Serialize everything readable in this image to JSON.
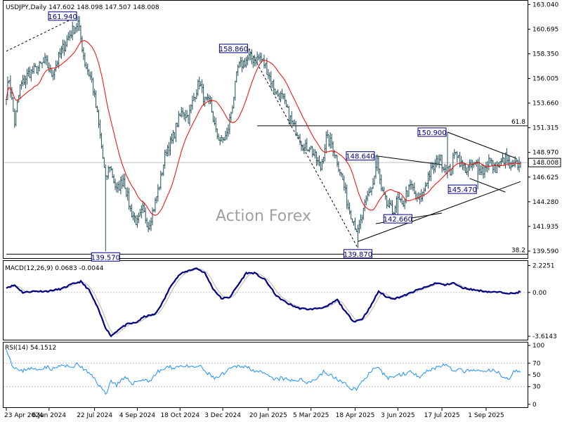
{
  "colors": {
    "price_bar": "#1f4e57",
    "sma": "#ff0000",
    "macd": "#000080",
    "macd_signal": "#b4b4b4",
    "rsi": "#1e90ff",
    "grid": "#c0c0c0",
    "level_box_border": "#000080",
    "level_text": "#000080",
    "watermark": "#a0a0a0",
    "current_price_bg": "#ffffff"
  },
  "header": {
    "title": "USDJPY,Daily  147.602 148.098 147.507 148.008"
  },
  "watermark": "Action Forex",
  "chart_data": [
    {
      "type": "ohlc",
      "title": "USDJPY,Daily  147.602 148.098 147.507 148.008",
      "symbol": "USDJPY",
      "timeframe": "Daily",
      "last_bar": {
        "open": 147.602,
        "high": 148.098,
        "low": 147.507,
        "close": 148.008
      },
      "current_price_label": "148.008",
      "ylim": [
        138.92,
        163.4
      ],
      "y_ticks": [
        "163.040",
        "160.695",
        "158.350",
        "156.005",
        "153.660",
        "151.315",
        "148.970",
        "146.625",
        "144.280",
        "141.935",
        "139.590"
      ],
      "x_ticks": [
        "23 Apr 2024",
        "6 Jun 2024",
        "22 Jul 2024",
        "4 Sep 2024",
        "18 Oct 2024",
        "3 Dec 2024",
        "20 Jan 2025",
        "5 Mar 2025",
        "18 Apr 2025",
        "3 Jun 2025",
        "17 Jul 2025",
        "1 Sep 2025"
      ],
      "x_tick_index": [
        0,
        31,
        64,
        95,
        126,
        157,
        190,
        221,
        253,
        284,
        316,
        348
      ],
      "close_anchors": [
        {
          "i": 0,
          "v": 154.5
        },
        {
          "i": 2,
          "v": 156.0
        },
        {
          "i": 6,
          "v": 151.8
        },
        {
          "i": 10,
          "v": 155.2
        },
        {
          "i": 16,
          "v": 156.5
        },
        {
          "i": 22,
          "v": 156.9
        },
        {
          "i": 28,
          "v": 157.6
        },
        {
          "i": 33,
          "v": 156.4
        },
        {
          "i": 40,
          "v": 158.6
        },
        {
          "i": 46,
          "v": 160.2
        },
        {
          "i": 52,
          "v": 161.3
        },
        {
          "i": 57,
          "v": 157.5
        },
        {
          "i": 62,
          "v": 155.8
        },
        {
          "i": 66,
          "v": 152.5
        },
        {
          "i": 69,
          "v": 149.5
        },
        {
          "i": 72,
          "v": 146.3
        },
        {
          "i": 75,
          "v": 147.8
        },
        {
          "i": 80,
          "v": 145.3
        },
        {
          "i": 85,
          "v": 146.5
        },
        {
          "i": 90,
          "v": 143.5
        },
        {
          "i": 95,
          "v": 142.2
        },
        {
          "i": 99,
          "v": 143.5
        },
        {
          "i": 103,
          "v": 142.0
        },
        {
          "i": 108,
          "v": 144.2
        },
        {
          "i": 112,
          "v": 146.5
        },
        {
          "i": 116,
          "v": 149.3
        },
        {
          "i": 120,
          "v": 150.0
        },
        {
          "i": 124,
          "v": 151.8
        },
        {
          "i": 128,
          "v": 153.0
        },
        {
          "i": 132,
          "v": 152.2
        },
        {
          "i": 136,
          "v": 154.2
        },
        {
          "i": 140,
          "v": 155.7
        },
        {
          "i": 144,
          "v": 153.8
        },
        {
          "i": 148,
          "v": 153.6
        },
        {
          "i": 152,
          "v": 150.8
        },
        {
          "i": 156,
          "v": 150.0
        },
        {
          "i": 160,
          "v": 150.6
        },
        {
          "i": 164,
          "v": 153.5
        },
        {
          "i": 168,
          "v": 157.0
        },
        {
          "i": 172,
          "v": 157.5
        },
        {
          "i": 176,
          "v": 158.0
        },
        {
          "i": 180,
          "v": 157.8
        },
        {
          "i": 184,
          "v": 158.0
        },
        {
          "i": 188,
          "v": 157.2
        },
        {
          "i": 192,
          "v": 155.8
        },
        {
          "i": 196,
          "v": 154.6
        },
        {
          "i": 200,
          "v": 154.2
        },
        {
          "i": 204,
          "v": 152.8
        },
        {
          "i": 208,
          "v": 151.5
        },
        {
          "i": 212,
          "v": 150.8
        },
        {
          "i": 216,
          "v": 149.3
        },
        {
          "i": 220,
          "v": 149.6
        },
        {
          "i": 224,
          "v": 148.5
        },
        {
          "i": 228,
          "v": 147.5
        },
        {
          "i": 232,
          "v": 150.3
        },
        {
          "i": 236,
          "v": 149.8
        },
        {
          "i": 240,
          "v": 148.2
        },
        {
          "i": 244,
          "v": 146.3
        },
        {
          "i": 248,
          "v": 143.8
        },
        {
          "i": 252,
          "v": 142.5
        },
        {
          "i": 255,
          "v": 141.3
        },
        {
          "i": 258,
          "v": 142.8
        },
        {
          "i": 262,
          "v": 144.8
        },
        {
          "i": 266,
          "v": 146.0
        },
        {
          "i": 269,
          "v": 148.2
        },
        {
          "i": 272,
          "v": 145.3
        },
        {
          "i": 276,
          "v": 144.0
        },
        {
          "i": 280,
          "v": 143.3
        },
        {
          "i": 284,
          "v": 144.5
        },
        {
          "i": 287,
          "v": 143.8
        },
        {
          "i": 290,
          "v": 145.0
        },
        {
          "i": 294,
          "v": 145.8
        },
        {
          "i": 298,
          "v": 144.3
        },
        {
          "i": 302,
          "v": 145.0
        },
        {
          "i": 306,
          "v": 146.8
        },
        {
          "i": 310,
          "v": 147.5
        },
        {
          "i": 314,
          "v": 148.5
        },
        {
          "i": 318,
          "v": 147.5
        },
        {
          "i": 322,
          "v": 147.2
        },
        {
          "i": 326,
          "v": 149.3
        },
        {
          "i": 330,
          "v": 147.8
        },
        {
          "i": 334,
          "v": 147.3
        },
        {
          "i": 338,
          "v": 147.7
        },
        {
          "i": 342,
          "v": 147.9
        },
        {
          "i": 346,
          "v": 147.2
        },
        {
          "i": 350,
          "v": 148.3
        },
        {
          "i": 354,
          "v": 147.4
        },
        {
          "i": 358,
          "v": 147.8
        },
        {
          "i": 362,
          "v": 148.5
        },
        {
          "i": 366,
          "v": 147.3
        },
        {
          "i": 370,
          "v": 147.8
        },
        {
          "i": 373,
          "v": 148.008
        }
      ],
      "series": [
        {
          "name": "SMA",
          "kind": "moving-average"
        }
      ],
      "annotations": [
        {
          "label": "161.940",
          "i": 52,
          "price": 161.94,
          "side": "left"
        },
        {
          "label": "139.570",
          "i": 72,
          "price": 139.57,
          "side": "below"
        },
        {
          "label": "158.860",
          "i": 176,
          "price": 158.86,
          "side": "left"
        },
        {
          "label": "139.870",
          "i": 255,
          "price": 139.87,
          "side": "below"
        },
        {
          "label": "148.640",
          "i": 268,
          "price": 148.64,
          "side": "left"
        },
        {
          "label": "142.660",
          "i": 284,
          "price": 142.66,
          "side": "inside"
        },
        {
          "label": "150.900",
          "i": 320,
          "price": 150.9,
          "side": "left"
        },
        {
          "label": "145.470",
          "i": 342,
          "price": 145.47,
          "side": "left"
        }
      ],
      "fib_levels": [
        {
          "label": "61.8",
          "price": 151.5,
          "from_i": 182
        },
        {
          "label": "38.2",
          "price": 139.3,
          "from_i": 0
        }
      ],
      "trendlines": [
        {
          "from": {
            "i": 0,
            "v": 158.6
          },
          "to": {
            "i": 52,
            "v": 161.94
          },
          "dashed": true
        },
        {
          "from": {
            "i": 176,
            "v": 158.86
          },
          "to": {
            "i": 255,
            "v": 139.87
          },
          "dashed": true
        },
        {
          "from": {
            "i": 268,
            "v": 148.64
          },
          "to": {
            "i": 316,
            "v": 147.8
          },
          "dashed": false
        },
        {
          "from": {
            "i": 268,
            "v": 142.2
          },
          "to": {
            "i": 316,
            "v": 143.2
          },
          "dashed": false
        },
        {
          "from": {
            "i": 320,
            "v": 150.9
          },
          "to": {
            "i": 370,
            "v": 148.4
          },
          "dashed": false
        },
        {
          "from": {
            "i": 255,
            "v": 140.5
          },
          "to": {
            "i": 373,
            "v": 146.2
          },
          "dashed": false
        },
        {
          "from": {
            "i": 336,
            "v": 146.5
          },
          "to": {
            "i": 362,
            "v": 145.2
          },
          "dashed": false
        }
      ]
    },
    {
      "type": "line",
      "title": "MACD(12,26,9) 0.0683 -0.0044",
      "ylim": [
        -3.9,
        2.6
      ],
      "y_ticks": [
        "2.2251",
        "0.00",
        "-3.6143"
      ],
      "series": [
        {
          "name": "MACD",
          "anchors": [
            {
              "i": 0,
              "v": 0.4
            },
            {
              "i": 6,
              "v": 0.6
            },
            {
              "i": 12,
              "v": 0.0
            },
            {
              "i": 20,
              "v": 0.1
            },
            {
              "i": 30,
              "v": 0.1
            },
            {
              "i": 40,
              "v": 0.3
            },
            {
              "i": 48,
              "v": 0.7
            },
            {
              "i": 54,
              "v": 0.9
            },
            {
              "i": 60,
              "v": 0.2
            },
            {
              "i": 66,
              "v": -1.2
            },
            {
              "i": 72,
              "v": -2.9
            },
            {
              "i": 76,
              "v": -3.6
            },
            {
              "i": 82,
              "v": -3.0
            },
            {
              "i": 88,
              "v": -2.6
            },
            {
              "i": 94,
              "v": -2.5
            },
            {
              "i": 100,
              "v": -2.0
            },
            {
              "i": 108,
              "v": -1.8
            },
            {
              "i": 114,
              "v": -0.7
            },
            {
              "i": 120,
              "v": 0.7
            },
            {
              "i": 126,
              "v": 1.5
            },
            {
              "i": 132,
              "v": 1.8
            },
            {
              "i": 138,
              "v": 2.0
            },
            {
              "i": 144,
              "v": 1.6
            },
            {
              "i": 150,
              "v": 0.3
            },
            {
              "i": 156,
              "v": -0.5
            },
            {
              "i": 162,
              "v": -0.4
            },
            {
              "i": 168,
              "v": 0.6
            },
            {
              "i": 174,
              "v": 1.6
            },
            {
              "i": 180,
              "v": 1.6
            },
            {
              "i": 188,
              "v": 1.0
            },
            {
              "i": 196,
              "v": -0.3
            },
            {
              "i": 204,
              "v": -0.9
            },
            {
              "i": 212,
              "v": -1.3
            },
            {
              "i": 220,
              "v": -1.4
            },
            {
              "i": 226,
              "v": -1.3
            },
            {
              "i": 232,
              "v": -1.2
            },
            {
              "i": 240,
              "v": -0.6
            },
            {
              "i": 246,
              "v": -1.6
            },
            {
              "i": 252,
              "v": -2.4
            },
            {
              "i": 258,
              "v": -2.2
            },
            {
              "i": 264,
              "v": -1.2
            },
            {
              "i": 270,
              "v": 0.1
            },
            {
              "i": 276,
              "v": -0.4
            },
            {
              "i": 282,
              "v": -0.5
            },
            {
              "i": 290,
              "v": -0.2
            },
            {
              "i": 298,
              "v": 0.2
            },
            {
              "i": 306,
              "v": 0.5
            },
            {
              "i": 312,
              "v": 0.8
            },
            {
              "i": 318,
              "v": 0.6
            },
            {
              "i": 324,
              "v": 0.8
            },
            {
              "i": 330,
              "v": 0.4
            },
            {
              "i": 340,
              "v": 0.2
            },
            {
              "i": 350,
              "v": 0.05
            },
            {
              "i": 360,
              "v": 0.0
            },
            {
              "i": 368,
              "v": -0.1
            },
            {
              "i": 373,
              "v": 0.0683
            }
          ]
        },
        {
          "name": "Signal",
          "lag": 5
        }
      ]
    },
    {
      "type": "line",
      "title": "RSI(14) 54.1512",
      "ylim": [
        -5,
        105
      ],
      "y_ticks": [
        "100",
        "70",
        "50",
        "30",
        "0"
      ],
      "levels": [
        70,
        30
      ],
      "series": [
        {
          "name": "RSI",
          "anchors": [
            {
              "i": 0,
              "v": 96
            },
            {
              "i": 4,
              "v": 68
            },
            {
              "i": 10,
              "v": 55
            },
            {
              "i": 16,
              "v": 62
            },
            {
              "i": 22,
              "v": 58
            },
            {
              "i": 28,
              "v": 64
            },
            {
              "i": 34,
              "v": 60
            },
            {
              "i": 40,
              "v": 66
            },
            {
              "i": 46,
              "v": 63
            },
            {
              "i": 52,
              "v": 68
            },
            {
              "i": 58,
              "v": 56
            },
            {
              "i": 64,
              "v": 44
            },
            {
              "i": 68,
              "v": 30
            },
            {
              "i": 72,
              "v": 18
            },
            {
              "i": 76,
              "v": 40
            },
            {
              "i": 80,
              "v": 33
            },
            {
              "i": 86,
              "v": 44
            },
            {
              "i": 92,
              "v": 36
            },
            {
              "i": 98,
              "v": 42
            },
            {
              "i": 104,
              "v": 40
            },
            {
              "i": 110,
              "v": 55
            },
            {
              "i": 116,
              "v": 62
            },
            {
              "i": 122,
              "v": 63
            },
            {
              "i": 128,
              "v": 66
            },
            {
              "i": 134,
              "v": 62
            },
            {
              "i": 140,
              "v": 65
            },
            {
              "i": 146,
              "v": 52
            },
            {
              "i": 152,
              "v": 44
            },
            {
              "i": 158,
              "v": 52
            },
            {
              "i": 164,
              "v": 62
            },
            {
              "i": 170,
              "v": 66
            },
            {
              "i": 176,
              "v": 62
            },
            {
              "i": 182,
              "v": 56
            },
            {
              "i": 188,
              "v": 50
            },
            {
              "i": 194,
              "v": 42
            },
            {
              "i": 200,
              "v": 44
            },
            {
              "i": 206,
              "v": 40
            },
            {
              "i": 212,
              "v": 42
            },
            {
              "i": 218,
              "v": 38
            },
            {
              "i": 224,
              "v": 42
            },
            {
              "i": 230,
              "v": 55
            },
            {
              "i": 236,
              "v": 48
            },
            {
              "i": 242,
              "v": 40
            },
            {
              "i": 248,
              "v": 30
            },
            {
              "i": 254,
              "v": 25
            },
            {
              "i": 260,
              "v": 45
            },
            {
              "i": 266,
              "v": 58
            },
            {
              "i": 270,
              "v": 60
            },
            {
              "i": 276,
              "v": 45
            },
            {
              "i": 282,
              "v": 48
            },
            {
              "i": 288,
              "v": 52
            },
            {
              "i": 294,
              "v": 55
            },
            {
              "i": 300,
              "v": 48
            },
            {
              "i": 306,
              "v": 58
            },
            {
              "i": 312,
              "v": 63
            },
            {
              "i": 318,
              "v": 68
            },
            {
              "i": 322,
              "v": 60
            },
            {
              "i": 328,
              "v": 58
            },
            {
              "i": 334,
              "v": 56
            },
            {
              "i": 340,
              "v": 57
            },
            {
              "i": 346,
              "v": 55
            },
            {
              "i": 352,
              "v": 58
            },
            {
              "i": 358,
              "v": 52
            },
            {
              "i": 364,
              "v": 42
            },
            {
              "i": 368,
              "v": 56
            },
            {
              "i": 373,
              "v": 54.15
            }
          ]
        }
      ]
    }
  ]
}
